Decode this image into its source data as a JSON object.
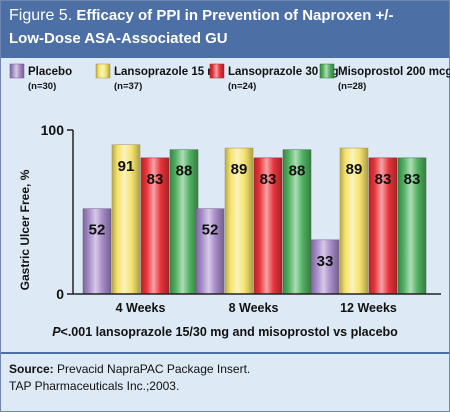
{
  "figure": {
    "label": "Figure 5.",
    "title_line1": "Efficacy of PPI in Prevention of Naproxen +/-",
    "title_line2": "Low-Dose ASA-Associated GU"
  },
  "footnote": {
    "p_label": "P",
    "text": "<.001 lansoprazole 15/30 mg and misoprostol vs placebo"
  },
  "source": {
    "label": "Source:",
    "line1": "Prevacid NapraPAC Package Insert.",
    "line2": "TAP Pharmaceuticals Inc.;2003."
  },
  "colors": {
    "header": "#4c6fa5",
    "panel": "#dde9f5",
    "placebo": "#a58ac8",
    "lansoprazole_15": "#f5e36c",
    "lansoprazole_30": "#e8343a",
    "misoprostol": "#4fb160"
  },
  "chart_data": {
    "type": "bar",
    "categories": [
      "4 Weeks",
      "8 Weeks",
      "12 Weeks"
    ],
    "series": [
      {
        "name": "Placebo",
        "n": "(n=30)",
        "values": [
          52,
          52,
          33
        ]
      },
      {
        "name": "Lansoprazole 15 mg",
        "n": "(n=37)",
        "values": [
          91,
          89,
          89
        ]
      },
      {
        "name": "Lansoprazole 30 mg",
        "n": "(n=24)",
        "values": [
          83,
          83,
          83
        ]
      },
      {
        "name": "Misoprostol 200 mcg",
        "n": "(n=28)",
        "values": [
          88,
          88,
          83
        ]
      }
    ],
    "ylabel": "Gastric Ulcer Free, %",
    "yticks": [
      0,
      100
    ],
    "ylim": [
      0,
      100
    ],
    "legend_position": "top",
    "grid": false
  }
}
